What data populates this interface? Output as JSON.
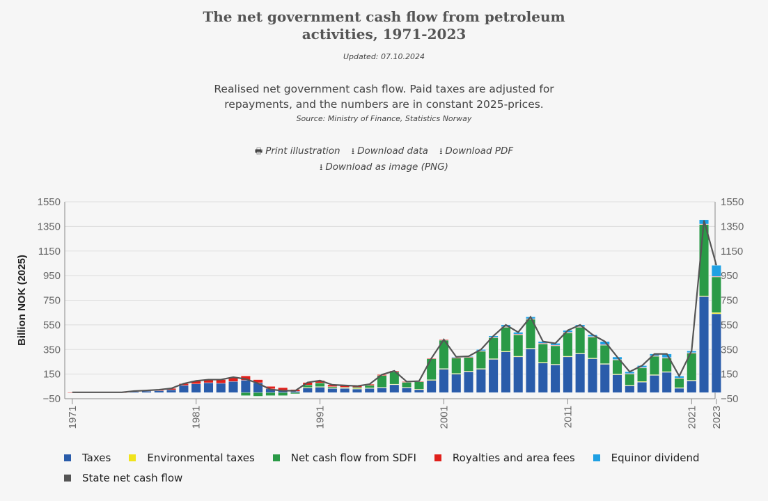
{
  "header": {
    "title_line1": "The net government cash flow from petroleum",
    "title_line2": "activities, 1971-2023",
    "updated": "Updated: 07.10.2024",
    "description_line1": "Realised net government cash flow. Paid taxes are adjusted for",
    "description_line2": "repayments, and the numbers are in constant 2025-prices.",
    "source": "Source: Ministry of Finance, Statistics Norway"
  },
  "actions": {
    "print": "Print illustration",
    "download_data": "Download data",
    "download_pdf": "Download PDF",
    "download_png": "Download as image (PNG)"
  },
  "chart_data": {
    "type": "bar",
    "stacked": true,
    "ylabel": "Billion NOK (2025)",
    "ylim": [
      -50,
      1550
    ],
    "yticks": [
      -50,
      150,
      350,
      550,
      750,
      950,
      1150,
      1350,
      1550
    ],
    "ytick_labels": [
      "−50",
      "150",
      "350",
      "550",
      "750",
      "950",
      "1150",
      "1350",
      "1550"
    ],
    "secondary_y_axis": true,
    "grid": true,
    "legend_position": "bottom",
    "x": [
      1971,
      1972,
      1973,
      1974,
      1975,
      1976,
      1977,
      1978,
      1979,
      1980,
      1981,
      1982,
      1983,
      1984,
      1985,
      1986,
      1987,
      1988,
      1989,
      1990,
      1991,
      1992,
      1993,
      1994,
      1995,
      1996,
      1997,
      1998,
      1999,
      2000,
      2001,
      2002,
      2003,
      2004,
      2005,
      2006,
      2007,
      2008,
      2009,
      2010,
      2011,
      2012,
      2013,
      2014,
      2015,
      2016,
      2017,
      2018,
      2019,
      2020,
      2021,
      2022,
      2023
    ],
    "xtick_labels": [
      "1971",
      "1981",
      "1991",
      "2001",
      "2011",
      "2021",
      "2023"
    ],
    "series": [
      {
        "name": "Taxes",
        "color": "#2a5caa",
        "values": [
          0,
          0,
          0,
          0,
          0,
          8,
          12,
          15,
          22,
          58,
          70,
          80,
          75,
          90,
          100,
          80,
          30,
          20,
          10,
          40,
          45,
          35,
          35,
          30,
          35,
          40,
          65,
          40,
          25,
          100,
          190,
          150,
          170,
          190,
          270,
          330,
          290,
          355,
          240,
          225,
          290,
          315,
          275,
          230,
          145,
          55,
          85,
          140,
          165,
          35,
          95,
          780,
          640
        ]
      },
      {
        "name": "Environmental taxes",
        "color": "#f0e31c",
        "values": [
          0,
          0,
          0,
          0,
          0,
          0,
          0,
          0,
          0,
          0,
          0,
          0,
          0,
          0,
          0,
          0,
          0,
          0,
          0,
          2,
          3,
          3,
          3,
          3,
          3,
          3,
          3,
          3,
          3,
          4,
          5,
          5,
          5,
          5,
          5,
          5,
          5,
          5,
          5,
          5,
          5,
          5,
          5,
          5,
          5,
          5,
          5,
          5,
          5,
          5,
          5,
          5,
          10
        ]
      },
      {
        "name": "Net cash flow from SDFI",
        "color": "#2a9a47",
        "values": [
          0,
          0,
          0,
          0,
          0,
          0,
          0,
          0,
          0,
          0,
          0,
          0,
          0,
          0,
          -25,
          -30,
          -25,
          -25,
          -10,
          20,
          30,
          10,
          5,
          10,
          20,
          95,
          100,
          40,
          60,
          170,
          230,
          125,
          110,
          140,
          170,
          195,
          175,
          235,
          150,
          150,
          190,
          210,
          170,
          150,
          115,
          90,
          110,
          150,
          110,
          75,
          220,
          580,
          290
        ]
      },
      {
        "name": "Royalties and area fees",
        "color": "#e0201b",
        "values": [
          2,
          2,
          2,
          2,
          2,
          4,
          5,
          8,
          12,
          15,
          25,
          25,
          30,
          35,
          35,
          25,
          20,
          20,
          15,
          20,
          20,
          15,
          15,
          10,
          10,
          8,
          8,
          6,
          5,
          5,
          6,
          5,
          5,
          5,
          5,
          5,
          5,
          5,
          5,
          5,
          5,
          5,
          5,
          5,
          4,
          4,
          4,
          4,
          4,
          4,
          4,
          4,
          4
        ]
      },
      {
        "name": "Equinor dividend",
        "color": "#1fa0e3",
        "values": [
          0,
          0,
          0,
          0,
          0,
          0,
          0,
          0,
          0,
          0,
          0,
          0,
          0,
          0,
          0,
          0,
          0,
          0,
          0,
          0,
          0,
          0,
          0,
          0,
          0,
          0,
          0,
          0,
          0,
          0,
          0,
          5,
          5,
          10,
          10,
          15,
          15,
          15,
          15,
          15,
          15,
          15,
          15,
          25,
          20,
          15,
          15,
          15,
          30,
          15,
          15,
          35,
          90
        ]
      }
    ],
    "line": {
      "name": "State net cash flow",
      "color": "#555555",
      "values": [
        2,
        2,
        2,
        2,
        2,
        12,
        17,
        23,
        34,
        73,
        95,
        105,
        105,
        125,
        110,
        75,
        25,
        15,
        15,
        82,
        98,
        63,
        58,
        53,
        68,
        146,
        176,
        89,
        93,
        279,
        431,
        290,
        295,
        350,
        460,
        550,
        490,
        615,
        415,
        400,
        505,
        550,
        470,
        415,
        289,
        169,
        219,
        314,
        314,
        134,
        339,
        1399,
        1034
      ]
    }
  },
  "legend": {
    "items": [
      {
        "label": "Taxes",
        "color": "#2a5caa"
      },
      {
        "label": "Environmental taxes",
        "color": "#f0e31c"
      },
      {
        "label": "Net cash flow from SDFI",
        "color": "#2a9a47"
      },
      {
        "label": "Royalties and area fees",
        "color": "#e0201b"
      },
      {
        "label": "Equinor dividend",
        "color": "#1fa0e3"
      },
      {
        "label": "State net cash flow",
        "color": "#555555"
      }
    ]
  }
}
